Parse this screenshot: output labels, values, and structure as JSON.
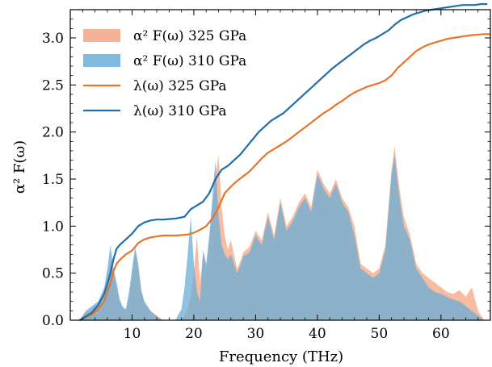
{
  "chart_data": {
    "type": "area",
    "title": "",
    "xlabel": "Frequency (THz)",
    "ylabel": "α² F(ω)",
    "xlim": [
      0,
      68
    ],
    "ylim": [
      0,
      3.3
    ],
    "xticks": [
      10,
      20,
      30,
      40,
      50,
      60
    ],
    "yticks": [
      0.0,
      0.5,
      1.0,
      1.5,
      2.0,
      2.5,
      3.0
    ],
    "xtick_labels": [
      "10",
      "20",
      "30",
      "40",
      "50",
      "60"
    ],
    "ytick_labels": [
      "0.0",
      "0.5",
      "1.0",
      "1.5",
      "2.0",
      "2.5",
      "3.0"
    ],
    "grid": false,
    "legend": {
      "placement": "top-left",
      "entries": [
        {
          "label": "α² F(ω) 325 GPa",
          "kind": "fill",
          "color": "#f4a582"
        },
        {
          "label": "α² F(ω) 310 GPa",
          "kind": "fill",
          "color": "#6aaed6"
        },
        {
          "label": "λ(ω) 325 GPa",
          "kind": "line",
          "color": "#e8742a"
        },
        {
          "label": "λ(ω) 310 GPa",
          "kind": "line",
          "color": "#1f6fae"
        }
      ]
    },
    "series": [
      {
        "name": "α² F(ω) 325 GPa",
        "kind": "area",
        "color": "#f4a582",
        "opacity": 0.75,
        "x": [
          1.5,
          2.5,
          3.5,
          4.5,
          5.5,
          6.0,
          6.5,
          7.0,
          7.5,
          8.0,
          8.5,
          9.0,
          9.5,
          10.0,
          10.5,
          11.0,
          11.5,
          12.0,
          13.0,
          14.0,
          15.0,
          16.0,
          17.0,
          18.0,
          18.5,
          19.0,
          19.5,
          20.0,
          20.5,
          21.0,
          21.5,
          22.0,
          22.5,
          23.0,
          23.5,
          24.0,
          24.5,
          25.0,
          25.5,
          26.0,
          26.5,
          27.0,
          27.5,
          28.0,
          29.0,
          30.0,
          31.0,
          32.0,
          33.0,
          34.0,
          35.0,
          36.0,
          37.0,
          38.0,
          39.0,
          40.0,
          41.0,
          42.0,
          43.0,
          44.0,
          45.0,
          46.0,
          47.0,
          48.0,
          49.0,
          50.0,
          51.0,
          52.0,
          52.5,
          53.0,
          53.5,
          54.0,
          55.0,
          56.0,
          57.0,
          58.0,
          59.0,
          60.0,
          61.0,
          62.0,
          63.0,
          64.0,
          65.0,
          66.0,
          67.0,
          68.0
        ],
        "y": [
          0.0,
          0.08,
          0.12,
          0.18,
          0.3,
          0.45,
          0.65,
          0.5,
          0.35,
          0.2,
          0.12,
          0.1,
          0.25,
          0.45,
          0.75,
          0.55,
          0.3,
          0.18,
          0.1,
          0.05,
          0.0,
          0.0,
          0.0,
          0.0,
          0.05,
          0.12,
          0.25,
          0.5,
          0.9,
          0.4,
          0.7,
          0.55,
          0.85,
          1.2,
          1.55,
          1.75,
          1.2,
          0.9,
          0.75,
          0.85,
          0.7,
          0.55,
          0.62,
          0.72,
          0.78,
          0.95,
          0.85,
          1.15,
          0.9,
          1.3,
          1.0,
          1.1,
          1.25,
          1.35,
          1.2,
          1.6,
          1.45,
          1.35,
          1.5,
          1.3,
          1.2,
          1.0,
          0.6,
          0.55,
          0.5,
          0.55,
          0.8,
          1.6,
          1.85,
          1.55,
          1.3,
          1.1,
          0.9,
          0.6,
          0.5,
          0.45,
          0.4,
          0.35,
          0.3,
          0.28,
          0.32,
          0.25,
          0.35,
          0.1,
          0.0,
          0.0
        ]
      },
      {
        "name": "α² F(ω) 310 GPa",
        "kind": "area",
        "color": "#6aaed6",
        "opacity": 0.75,
        "x": [
          1.5,
          2.5,
          3.5,
          4.5,
          5.5,
          6.0,
          6.5,
          7.0,
          7.5,
          8.0,
          8.5,
          9.0,
          9.5,
          10.0,
          10.5,
          11.0,
          11.5,
          12.0,
          13.0,
          14.0,
          15.0,
          16.0,
          17.0,
          18.0,
          18.5,
          19.0,
          19.5,
          20.0,
          20.5,
          21.0,
          21.5,
          22.0,
          22.5,
          23.0,
          23.5,
          24.0,
          24.5,
          25.0,
          25.5,
          26.0,
          26.5,
          27.0,
          27.5,
          28.0,
          29.0,
          30.0,
          31.0,
          32.0,
          33.0,
          34.0,
          35.0,
          36.0,
          37.0,
          38.0,
          39.0,
          40.0,
          41.0,
          42.0,
          43.0,
          44.0,
          45.0,
          46.0,
          47.0,
          48.0,
          49.0,
          50.0,
          51.0,
          52.0,
          52.5,
          53.0,
          53.5,
          54.0,
          55.0,
          56.0,
          57.0,
          58.0,
          59.0,
          60.0,
          61.0,
          62.0,
          63.0,
          64.0,
          65.0,
          66.0,
          67.0,
          68.0
        ],
        "y": [
          0.0,
          0.1,
          0.15,
          0.2,
          0.35,
          0.55,
          0.8,
          0.55,
          0.4,
          0.22,
          0.14,
          0.12,
          0.3,
          0.55,
          0.78,
          0.6,
          0.32,
          0.2,
          0.1,
          0.04,
          0.0,
          0.0,
          0.0,
          0.12,
          0.35,
          0.7,
          1.1,
          0.6,
          0.3,
          0.2,
          0.75,
          0.6,
          0.9,
          1.3,
          1.7,
          1.1,
          0.8,
          0.7,
          0.65,
          0.7,
          0.6,
          0.5,
          0.58,
          0.68,
          0.72,
          0.9,
          0.8,
          1.1,
          0.85,
          1.25,
          0.95,
          1.05,
          1.2,
          1.3,
          1.15,
          1.55,
          1.4,
          1.3,
          1.45,
          1.25,
          1.15,
          0.9,
          0.55,
          0.5,
          0.45,
          0.5,
          0.75,
          1.55,
          1.75,
          1.45,
          1.2,
          1.0,
          0.85,
          0.55,
          0.45,
          0.35,
          0.3,
          0.28,
          0.25,
          0.22,
          0.2,
          0.15,
          0.1,
          0.05,
          0.0,
          0.0
        ]
      },
      {
        "name": "λ(ω) 325 GPa",
        "kind": "line",
        "color": "#e8742a",
        "x": [
          1.5,
          2.5,
          3.5,
          4.5,
          5.5,
          6.5,
          7.0,
          7.5,
          8.0,
          9.0,
          10.0,
          11.0,
          12.0,
          13.0,
          14.0,
          15.0,
          17.0,
          19.0,
          20.0,
          21.0,
          22.0,
          23.0,
          24.0,
          25.0,
          26.0,
          27.0,
          28.0,
          29.0,
          30.0,
          31.0,
          32.0,
          33.0,
          34.0,
          35.0,
          36.0,
          37.0,
          38.0,
          39.0,
          40.0,
          41.0,
          42.0,
          43.0,
          44.0,
          45.0,
          46.0,
          47.0,
          48.0,
          49.0,
          50.0,
          51.0,
          52.0,
          53.0,
          54.0,
          55.0,
          56.0,
          57.0,
          58.0,
          59.0,
          60.0,
          61.0,
          62.0,
          63.0,
          64.0,
          65.0,
          66.0,
          67.0,
          68.0
        ],
        "y": [
          0.0,
          0.03,
          0.06,
          0.12,
          0.2,
          0.4,
          0.52,
          0.6,
          0.64,
          0.7,
          0.74,
          0.82,
          0.86,
          0.88,
          0.89,
          0.9,
          0.9,
          0.91,
          0.93,
          0.96,
          1.0,
          1.08,
          1.2,
          1.35,
          1.42,
          1.48,
          1.53,
          1.58,
          1.65,
          1.72,
          1.78,
          1.82,
          1.86,
          1.9,
          1.95,
          2.0,
          2.05,
          2.1,
          2.15,
          2.2,
          2.24,
          2.29,
          2.33,
          2.38,
          2.42,
          2.45,
          2.48,
          2.5,
          2.52,
          2.55,
          2.6,
          2.68,
          2.74,
          2.8,
          2.86,
          2.9,
          2.93,
          2.95,
          2.97,
          2.99,
          3.0,
          3.01,
          3.02,
          3.03,
          3.035,
          3.04,
          3.04
        ]
      },
      {
        "name": "λ(ω) 310 GPa",
        "kind": "line",
        "color": "#1f6fae",
        "x": [
          1.5,
          2.5,
          3.5,
          4.5,
          5.5,
          6.5,
          7.0,
          7.5,
          8.0,
          9.0,
          10.0,
          11.0,
          12.0,
          13.0,
          14.0,
          15.0,
          17.0,
          18.5,
          19.5,
          20.5,
          21.5,
          22.5,
          23.5,
          24.5,
          25.5,
          26.5,
          27.5,
          28.5,
          29.5,
          30.5,
          31.5,
          32.5,
          33.5,
          34.5,
          35.5,
          36.5,
          37.5,
          38.5,
          39.5,
          40.5,
          41.5,
          42.5,
          43.5,
          44.5,
          45.5,
          46.5,
          47.5,
          48.5,
          49.5,
          50.5,
          51.5,
          52.5,
          53.5,
          54.5,
          55.5,
          56.5,
          57.5,
          58.5,
          59.5,
          60.5,
          61.5,
          62.5,
          63.5,
          64.5,
          65.5,
          66.5,
          67.5
        ],
        "y": [
          0.0,
          0.04,
          0.08,
          0.16,
          0.28,
          0.5,
          0.65,
          0.76,
          0.8,
          0.86,
          0.92,
          1.0,
          1.04,
          1.06,
          1.07,
          1.07,
          1.08,
          1.1,
          1.18,
          1.22,
          1.26,
          1.35,
          1.5,
          1.6,
          1.64,
          1.7,
          1.76,
          1.84,
          1.92,
          2.0,
          2.06,
          2.12,
          2.16,
          2.2,
          2.26,
          2.32,
          2.38,
          2.44,
          2.5,
          2.56,
          2.62,
          2.68,
          2.73,
          2.78,
          2.83,
          2.88,
          2.93,
          2.97,
          3.0,
          3.04,
          3.08,
          3.14,
          3.19,
          3.22,
          3.25,
          3.27,
          3.29,
          3.3,
          3.31,
          3.32,
          3.33,
          3.34,
          3.35,
          3.35,
          3.35,
          3.36,
          3.36
        ]
      }
    ]
  }
}
